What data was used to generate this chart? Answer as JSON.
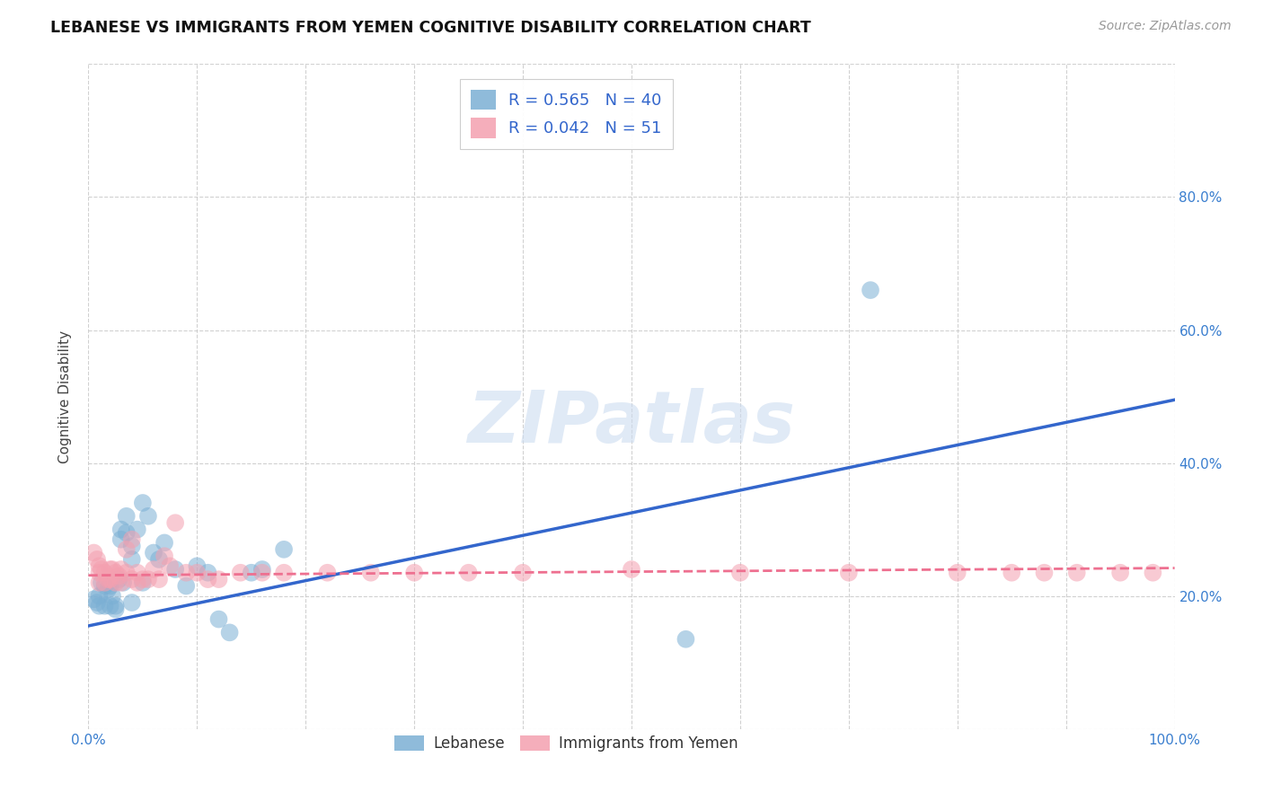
{
  "title": "LEBANESE VS IMMIGRANTS FROM YEMEN COGNITIVE DISABILITY CORRELATION CHART",
  "source": "Source: ZipAtlas.com",
  "ylabel": "Cognitive Disability",
  "xlim": [
    0,
    1.0
  ],
  "ylim": [
    0,
    1.0
  ],
  "background_color": "#ffffff",
  "grid_color": "#cccccc",
  "watermark_text": "ZIPatlas",
  "blue_color": "#7bafd4",
  "pink_color": "#f4a0b0",
  "line_blue_color": "#3366cc",
  "line_pink_color": "#ee7090",
  "marker_size": 200,
  "marker_alpha": 0.55,
  "blue_x": [
    0.005,
    0.008,
    0.01,
    0.01,
    0.012,
    0.015,
    0.015,
    0.018,
    0.02,
    0.02,
    0.022,
    0.025,
    0.025,
    0.028,
    0.03,
    0.03,
    0.032,
    0.035,
    0.035,
    0.04,
    0.04,
    0.04,
    0.045,
    0.05,
    0.05,
    0.055,
    0.06,
    0.065,
    0.07,
    0.08,
    0.09,
    0.1,
    0.11,
    0.12,
    0.13,
    0.15,
    0.16,
    0.18,
    0.72,
    0.55
  ],
  "blue_y": [
    0.195,
    0.19,
    0.2,
    0.185,
    0.22,
    0.215,
    0.185,
    0.21,
    0.215,
    0.185,
    0.2,
    0.185,
    0.18,
    0.225,
    0.3,
    0.285,
    0.22,
    0.32,
    0.295,
    0.275,
    0.255,
    0.19,
    0.3,
    0.22,
    0.34,
    0.32,
    0.265,
    0.255,
    0.28,
    0.24,
    0.215,
    0.245,
    0.235,
    0.165,
    0.145,
    0.235,
    0.24,
    0.27,
    0.66,
    0.135
  ],
  "pink_x": [
    0.005,
    0.008,
    0.01,
    0.01,
    0.01,
    0.012,
    0.015,
    0.015,
    0.018,
    0.02,
    0.02,
    0.022,
    0.025,
    0.025,
    0.028,
    0.03,
    0.03,
    0.035,
    0.035,
    0.04,
    0.04,
    0.045,
    0.045,
    0.05,
    0.055,
    0.06,
    0.065,
    0.07,
    0.075,
    0.08,
    0.09,
    0.1,
    0.11,
    0.12,
    0.14,
    0.16,
    0.18,
    0.22,
    0.26,
    0.3,
    0.35,
    0.4,
    0.5,
    0.6,
    0.7,
    0.8,
    0.85,
    0.88,
    0.91,
    0.95,
    0.98
  ],
  "pink_y": [
    0.265,
    0.255,
    0.245,
    0.235,
    0.22,
    0.24,
    0.235,
    0.22,
    0.225,
    0.24,
    0.225,
    0.24,
    0.235,
    0.22,
    0.23,
    0.24,
    0.22,
    0.235,
    0.27,
    0.285,
    0.225,
    0.235,
    0.22,
    0.225,
    0.225,
    0.24,
    0.225,
    0.26,
    0.245,
    0.31,
    0.235,
    0.235,
    0.225,
    0.225,
    0.235,
    0.235,
    0.235,
    0.235,
    0.235,
    0.235,
    0.235,
    0.235,
    0.24,
    0.235,
    0.235,
    0.235,
    0.235,
    0.235,
    0.235,
    0.235,
    0.235
  ],
  "blue_line_x0": 0.0,
  "blue_line_x1": 1.0,
  "blue_line_y0": 0.155,
  "blue_line_y1": 0.495,
  "pink_line_x0": 0.0,
  "pink_line_x1": 1.0,
  "pink_line_y0": 0.231,
  "pink_line_y1": 0.242,
  "legend1_text": "R = 0.565   N = 40",
  "legend2_text": "R = 0.042   N = 51",
  "bottom_legend1": "Lebanese",
  "bottom_legend2": "Immigrants from Yemen"
}
